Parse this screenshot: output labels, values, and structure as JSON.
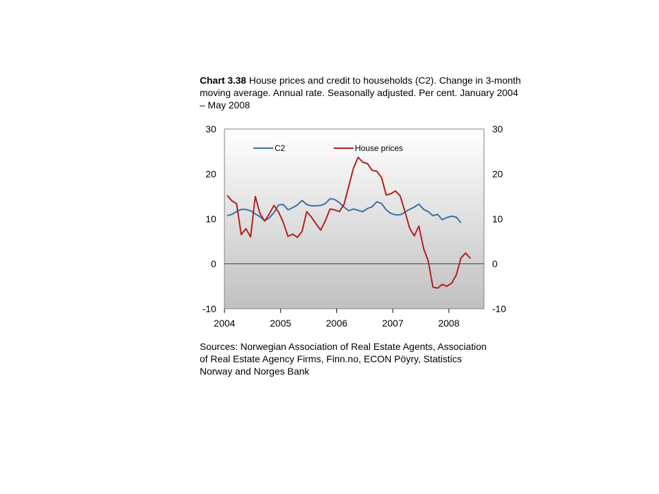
{
  "title": {
    "label": "Chart 3.38",
    "text": "House prices and credit to households (C2). Change in 3-month moving average. Annual rate. Seasonally adjusted. Per cent. January 2004 – May 2008"
  },
  "sources": "Sources: Norwegian Association of Real Estate Agents, Association of Real Estate Agency Firms, Finn.no, ECON Pöyry, Statistics Norway and Norges Bank",
  "colors": {
    "background_top": "#ffffff",
    "background_bottom": "#c0c0c0",
    "c2": "#3a6fa5",
    "house_prices": "#b01e1e"
  },
  "chart_data": {
    "type": "line",
    "title": "",
    "xlabel": "",
    "ylabel": "",
    "ylim": [
      -10,
      30
    ],
    "y_ticks": [
      "30",
      "20",
      "10",
      "0",
      "-10"
    ],
    "y_tick_values": [
      30,
      20,
      10,
      0,
      -10
    ],
    "x_start": "2004-01",
    "x_end": "2008-05",
    "x_tick_labels": [
      "2004",
      "2005",
      "2006",
      "2007",
      "2008"
    ],
    "x_tick_dates": [
      "2004-01",
      "2005-01",
      "2006-01",
      "2007-01",
      "2008-01"
    ],
    "legend": [
      "C2",
      "House prices"
    ],
    "legend_placement": "top-left",
    "grid": false,
    "months": [
      "2004-01",
      "2004-02",
      "2004-03",
      "2004-04",
      "2004-05",
      "2004-06",
      "2004-07",
      "2004-08",
      "2004-09",
      "2004-10",
      "2004-11",
      "2004-12",
      "2005-01",
      "2005-02",
      "2005-03",
      "2005-04",
      "2005-05",
      "2005-06",
      "2005-07",
      "2005-08",
      "2005-09",
      "2005-10",
      "2005-11",
      "2005-12",
      "2006-01",
      "2006-02",
      "2006-03",
      "2006-04",
      "2006-05",
      "2006-06",
      "2006-07",
      "2006-08",
      "2006-09",
      "2006-10",
      "2006-11",
      "2006-12",
      "2007-01",
      "2007-02",
      "2007-03",
      "2007-04",
      "2007-05",
      "2007-06",
      "2007-07",
      "2007-08",
      "2007-09",
      "2007-10",
      "2007-11",
      "2007-12",
      "2008-01",
      "2008-02",
      "2008-03",
      "2008-04",
      "2008-05"
    ],
    "series": [
      {
        "name": "C2",
        "values": [
          10.7,
          11.0,
          11.6,
          12.1,
          12.1,
          11.8,
          11.1,
          10.5,
          9.6,
          10.2,
          11.4,
          13.1,
          13.2,
          12.0,
          12.5,
          13.1,
          14.1,
          13.2,
          12.9,
          12.9,
          13.0,
          13.4,
          14.5,
          14.3,
          13.6,
          12.6,
          11.8,
          12.2,
          11.9,
          11.6,
          12.3,
          12.7,
          13.8,
          13.4,
          12.0,
          11.2,
          10.9,
          10.9,
          11.5,
          12.1,
          12.6,
          13.3,
          12.1,
          11.6,
          10.7,
          11.0,
          9.8,
          10.3,
          10.6,
          10.4,
          9.1
        ]
      },
      {
        "name": "House prices",
        "values": [
          15.2,
          14.0,
          13.4,
          6.5,
          7.8,
          6.0,
          15.0,
          11.2,
          9.5,
          11.1,
          13.0,
          11.5,
          9.2,
          6.1,
          6.6,
          5.9,
          7.2,
          11.6,
          10.4,
          8.9,
          7.5,
          9.6,
          12.2,
          12.0,
          11.6,
          13.3,
          17.3,
          21.3,
          23.7,
          22.6,
          22.3,
          20.8,
          20.6,
          19.2,
          15.3,
          15.6,
          16.2,
          15.1,
          11.7,
          8.0,
          6.2,
          8.4,
          3.4,
          0.6,
          -5.2,
          -5.4,
          -4.6,
          -5.0,
          -4.3,
          -2.5,
          1.3,
          2.4,
          1.2
        ]
      }
    ]
  }
}
